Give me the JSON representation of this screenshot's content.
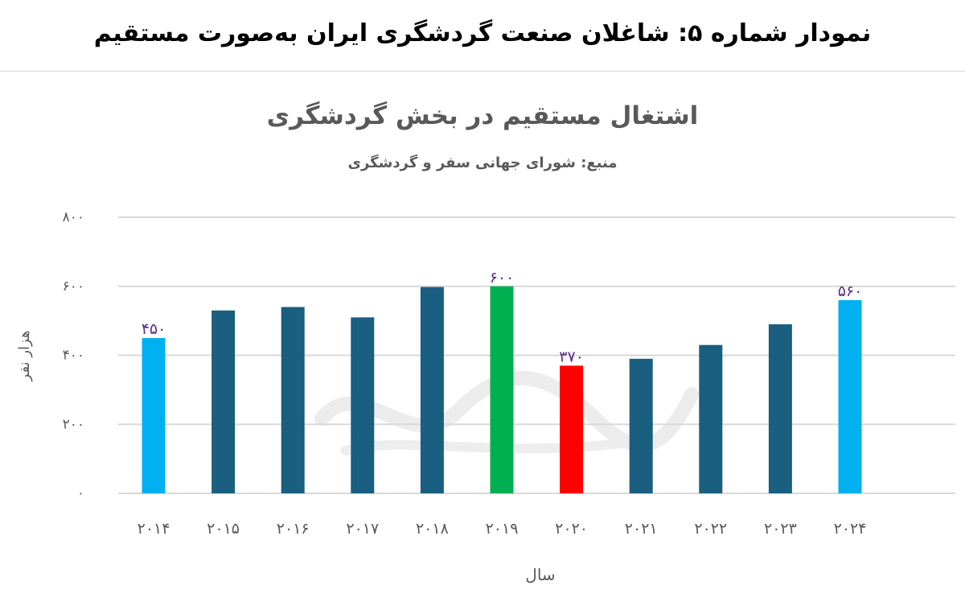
{
  "banner": {
    "title": "نمودار شماره ۵: شاغلان صنعت گردشگری ایران به‌صورت مستقیم"
  },
  "chart_data": {
    "type": "bar",
    "title": "اشتغال مستقیم در بخش گردشگری",
    "subtitle": "منبع: شورای جهانی سفر و گردشگری",
    "xlabel": "سال",
    "ylabel": "هزار نفر",
    "categories": [
      "۲۰۱۴",
      "۲۰۱۵",
      "۲۰۱۶",
      "۲۰۱۷",
      "۲۰۱۸",
      "۲۰۱۹",
      "۲۰۲۰",
      "۲۰۲۱",
      "۲۰۲۲",
      "۲۰۲۳",
      "۲۰۲۴"
    ],
    "values": [
      450,
      530,
      540,
      510,
      598,
      600,
      370,
      390,
      430,
      490,
      560
    ],
    "bar_colors": [
      "#00b0f0",
      "#1a5e80",
      "#1a5e80",
      "#1a5e80",
      "#1a5e80",
      "#00b050",
      "#ff0000",
      "#1a5e80",
      "#1a5e80",
      "#1a5e80",
      "#00b0f0"
    ],
    "data_labels": [
      "۴۵۰",
      "",
      "",
      "",
      "",
      "۶۰۰",
      "۳۷۰",
      "",
      "",
      "",
      "۵۶۰"
    ],
    "data_label_color": "#5b2a86",
    "yticks": [
      0,
      200,
      400,
      600,
      800
    ],
    "ytick_labels": [
      "۰",
      "۲۰۰",
      "۴۰۰",
      "۶۰۰",
      "۸۰۰"
    ],
    "ylim": [
      0,
      800
    ],
    "grid": true,
    "legend": "none"
  }
}
